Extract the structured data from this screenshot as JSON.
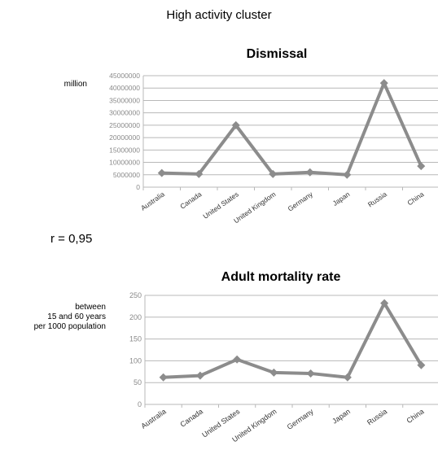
{
  "header": {
    "cluster_title": "High activity cluster",
    "correlation": "r = 0,95"
  },
  "chart_data": [
    {
      "type": "line",
      "title": "Dismissal",
      "ylabel": "million",
      "categories": [
        "Australia",
        "Canada",
        "United States",
        "United Kingdom",
        "Germany",
        "Japan",
        "Russia",
        "China"
      ],
      "values": [
        5700000,
        5300000,
        25000000,
        5300000,
        6000000,
        5000000,
        42000000,
        8500000
      ],
      "ylim": [
        0,
        45000000
      ],
      "yticks": [
        0,
        5000000,
        10000000,
        15000000,
        20000000,
        25000000,
        30000000,
        35000000,
        40000000,
        45000000
      ],
      "grid": true,
      "color": "#8c8c8c"
    },
    {
      "type": "line",
      "title": "Adult mortality rate",
      "ylabel_lines": [
        "between",
        "15 and 60 years",
        "per 1000 population"
      ],
      "categories": [
        "Australia",
        "Canada",
        "United States",
        "United Kingdom",
        "Germany",
        "Japan",
        "Russia",
        "China"
      ],
      "values": [
        62,
        66,
        103,
        73,
        71,
        62,
        232,
        90
      ],
      "ylim": [
        0,
        250
      ],
      "yticks": [
        0,
        50,
        100,
        150,
        200,
        250
      ],
      "grid": true,
      "color": "#8c8c8c"
    }
  ]
}
